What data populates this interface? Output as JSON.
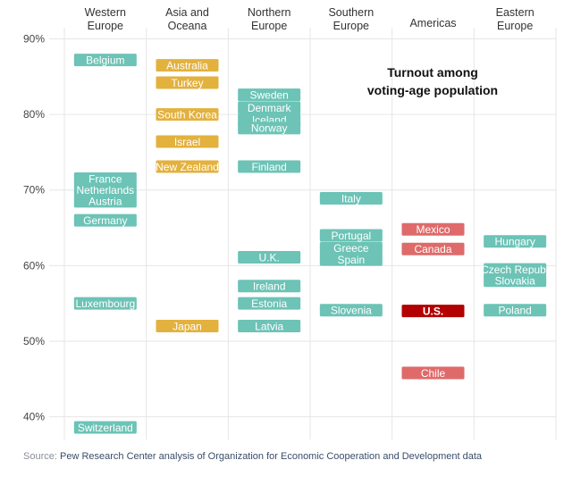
{
  "chart_data": {
    "type": "scatter",
    "title": "Turnout among voting-age population",
    "title_lines": [
      "Turnout among",
      "voting-age population"
    ],
    "ylim": [
      37,
      91
    ],
    "yticks": [
      40,
      50,
      60,
      70,
      80,
      90
    ],
    "ytick_labels": [
      "40%",
      "50%",
      "60%",
      "70%",
      "80%",
      "90%"
    ],
    "grid": true,
    "categories": [
      "Western Europe",
      "Asia and Oceana",
      "Northern Europe",
      "Southern Europe",
      "Americas",
      "Eastern Europe"
    ],
    "category_label_lines": [
      [
        "Western",
        "Europe"
      ],
      [
        "Asia and",
        "Oceana"
      ],
      [
        "Northern",
        "Europe"
      ],
      [
        "Southern",
        "Europe"
      ],
      [
        "Americas"
      ],
      [
        "Eastern",
        "Europe"
      ]
    ],
    "colors": {
      "Western Europe": "#6cc3b6",
      "Asia and Oceana": "#e3b13e",
      "Northern Europe": "#6cc3b6",
      "Southern Europe": "#6cc3b6",
      "Americas": "#df6a6a",
      "Eastern Europe": "#6cc3b6",
      "highlight": "#b30000"
    },
    "series": [
      {
        "region": "Western Europe",
        "points": [
          {
            "label": "Belgium",
            "value": 87.2
          },
          {
            "label": "France",
            "value": 71.5
          },
          {
            "label": "Netherlands",
            "value": 70.0
          },
          {
            "label": "Austria",
            "value": 68.5
          },
          {
            "label": "Germany",
            "value": 66.0
          },
          {
            "label": "Luxembourg",
            "value": 55.0
          },
          {
            "label": "Switzerland",
            "value": 38.6
          }
        ]
      },
      {
        "region": "Asia and Oceana",
        "points": [
          {
            "label": "Australia",
            "value": 86.5
          },
          {
            "label": "Turkey",
            "value": 84.2
          },
          {
            "label": "South Korea",
            "value": 80.0
          },
          {
            "label": "Israel",
            "value": 76.4
          },
          {
            "label": "New Zealand",
            "value": 73.1
          },
          {
            "label": "Japan",
            "value": 52.0
          }
        ]
      },
      {
        "region": "Northern Europe",
        "points": [
          {
            "label": "Sweden",
            "value": 82.6
          },
          {
            "label": "Denmark",
            "value": 80.9
          },
          {
            "label": "Iceland",
            "value": 79.3
          },
          {
            "label": "Norway",
            "value": 78.2
          },
          {
            "label": "Finland",
            "value": 73.1
          },
          {
            "label": "U.K.",
            "value": 61.1
          },
          {
            "label": "Ireland",
            "value": 57.3
          },
          {
            "label": "Estonia",
            "value": 55.0
          },
          {
            "label": "Latvia",
            "value": 52.0
          }
        ]
      },
      {
        "region": "Southern Europe",
        "points": [
          {
            "label": "Italy",
            "value": 68.9
          },
          {
            "label": "Portugal",
            "value": 64.0
          },
          {
            "label": "Greece",
            "value": 62.3
          },
          {
            "label": "Spain",
            "value": 60.8
          },
          {
            "label": "Slovenia",
            "value": 54.1
          }
        ]
      },
      {
        "region": "Americas",
        "points": [
          {
            "label": "Mexico",
            "value": 64.8
          },
          {
            "label": "Canada",
            "value": 62.2
          },
          {
            "label": "U.S.",
            "value": 54.0,
            "highlight": true
          },
          {
            "label": "Chile",
            "value": 45.8
          }
        ]
      },
      {
        "region": "Eastern Europe",
        "points": [
          {
            "label": "Hungary",
            "value": 63.2
          },
          {
            "label": "Czech Repub.",
            "value": 59.5
          },
          {
            "label": "Slovakia",
            "value": 58.0
          },
          {
            "label": "Poland",
            "value": 54.1
          }
        ]
      }
    ]
  },
  "footer": {
    "source_label": "Source:",
    "source_text": "Pew Research Center analysis of Organization for Economic Cooperation and Development data"
  }
}
